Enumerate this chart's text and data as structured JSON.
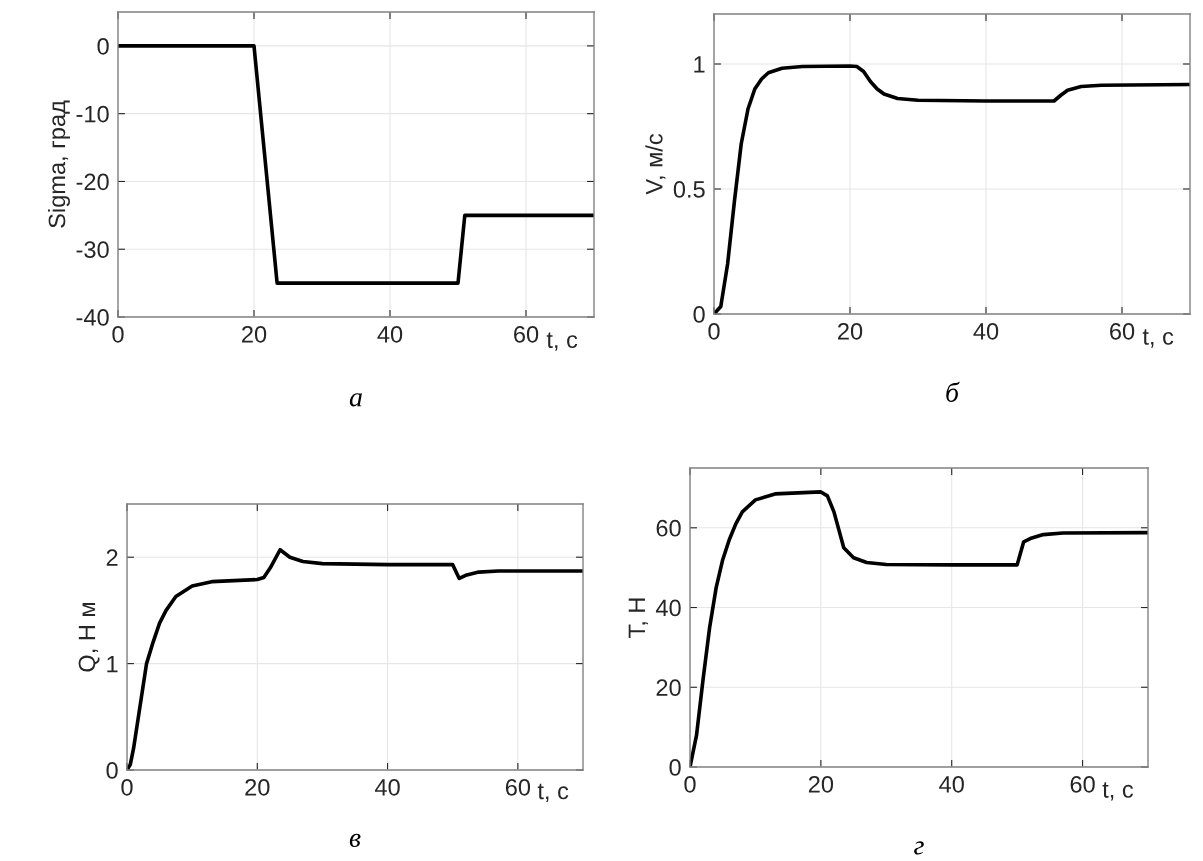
{
  "chart_data": [
    {
      "type": "line",
      "title": "а",
      "xlabel": "t, с",
      "ylabel": "Sigma, град",
      "xlim": [
        0,
        70
      ],
      "xticks": [
        0,
        20,
        40,
        60
      ],
      "ylim": [
        -40,
        5
      ],
      "yticks": [
        -40,
        -30,
        -20,
        -10,
        0
      ],
      "grid": true,
      "marker": "none",
      "line_style": "solid",
      "series": [
        {
          "color": "#000000",
          "x": [
            0,
            20,
            23.4,
            50,
            51,
            70
          ],
          "values": [
            0,
            0,
            -35,
            -35,
            -25,
            -25
          ]
        }
      ]
    },
    {
      "type": "line",
      "title": "б",
      "xlabel": "t, с",
      "ylabel": "V, м/с",
      "xlim": [
        0,
        70
      ],
      "xticks": [
        0,
        20,
        40,
        60
      ],
      "ylim": [
        0,
        1.2
      ],
      "yticks": [
        0,
        0.5,
        1
      ],
      "grid": true,
      "marker": "none",
      "line_style": "solid",
      "series": [
        {
          "color": "#000000",
          "x": [
            0,
            1,
            2,
            3,
            4,
            5,
            6,
            7,
            8,
            10,
            13,
            20,
            21,
            22,
            23,
            24,
            25,
            27,
            30,
            40,
            50,
            51,
            52,
            54,
            57,
            70
          ],
          "values": [
            0,
            0.03,
            0.2,
            0.45,
            0.68,
            0.82,
            0.9,
            0.94,
            0.965,
            0.983,
            0.99,
            0.992,
            0.99,
            0.97,
            0.93,
            0.9,
            0.88,
            0.862,
            0.855,
            0.852,
            0.852,
            0.875,
            0.895,
            0.91,
            0.915,
            0.918
          ]
        }
      ]
    },
    {
      "type": "line",
      "title": "в",
      "xlabel": "t, с",
      "ylabel": "Q, Н м",
      "xlim": [
        0,
        70
      ],
      "xticks": [
        0,
        20,
        40,
        60
      ],
      "ylim": [
        0,
        2.5
      ],
      "yticks": [
        0,
        1,
        2
      ],
      "grid": true,
      "marker": "none",
      "line_style": "solid",
      "series": [
        {
          "color": "#000000",
          "x": [
            0,
            0.5,
            1,
            2,
            3,
            4,
            5,
            6,
            7.5,
            10,
            13,
            20,
            21,
            22,
            23.5,
            25,
            27,
            30,
            40,
            50,
            51,
            52,
            54,
            57,
            70
          ],
          "values": [
            0,
            0.05,
            0.2,
            0.6,
            1.0,
            1.2,
            1.38,
            1.5,
            1.63,
            1.73,
            1.77,
            1.79,
            1.81,
            1.9,
            2.07,
            2.0,
            1.96,
            1.94,
            1.93,
            1.93,
            1.8,
            1.83,
            1.86,
            1.87,
            1.87
          ]
        }
      ]
    },
    {
      "type": "line",
      "title": "г",
      "xlabel": "t, с",
      "ylabel": "T, Н",
      "xlim": [
        0,
        70
      ],
      "xticks": [
        0,
        20,
        40,
        60
      ],
      "ylim": [
        0,
        75
      ],
      "yticks": [
        0,
        20,
        40,
        60
      ],
      "grid": true,
      "marker": "none",
      "line_style": "solid",
      "series": [
        {
          "color": "#000000",
          "x": [
            0,
            1,
            2,
            3,
            4,
            5,
            6,
            7,
            8,
            10,
            13,
            20,
            21,
            22,
            23.5,
            25,
            27,
            30,
            40,
            50,
            51,
            52,
            54,
            57,
            70
          ],
          "values": [
            0,
            8,
            22,
            35,
            45,
            52,
            57,
            61,
            64,
            67,
            68.5,
            69,
            68,
            64,
            55,
            52.5,
            51.3,
            50.8,
            50.7,
            50.7,
            56.5,
            57.3,
            58.3,
            58.7,
            58.8
          ]
        }
      ]
    }
  ]
}
